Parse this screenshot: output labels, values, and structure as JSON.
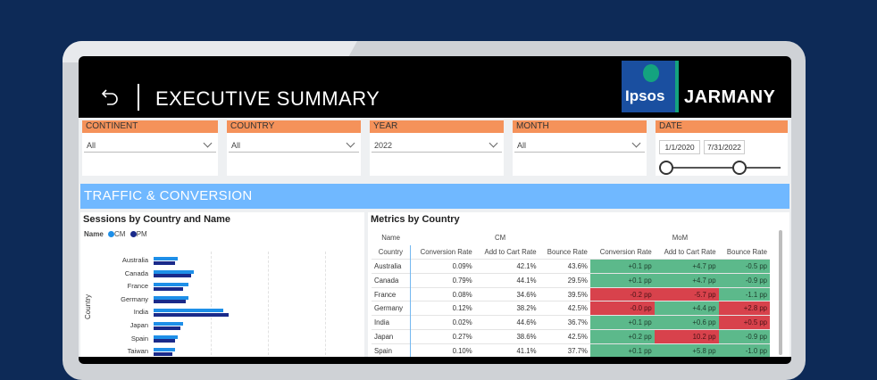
{
  "header": {
    "title": "EXECUTIVE SUMMARY",
    "logo_text": "Ipsos",
    "brand": "JARMANY"
  },
  "slicers": [
    {
      "label": "CONTINENT",
      "value": "All"
    },
    {
      "label": "COUNTRY",
      "value": "All"
    },
    {
      "label": "YEAR",
      "value": "2022"
    },
    {
      "label": "MONTH",
      "value": "All"
    }
  ],
  "date_slicer": {
    "label": "DATE",
    "start": "1/1/2020",
    "end": "7/31/2022"
  },
  "section_title": "TRAFFIC & CONVERSION",
  "colors": {
    "cm": "#1e8fe8",
    "pm": "#1a2a8a",
    "positive": "#5cb98b",
    "negative": "#d8424c",
    "accent_bar": "#70b8ff",
    "slicer_header": "#f5925a"
  },
  "sessions_chart": {
    "title": "Sessions by Country and Name",
    "legend_title": "Name",
    "ylabel": "Country",
    "chart_data": {
      "type": "bar",
      "orientation": "horizontal",
      "categories": [
        "Australia",
        "Canada",
        "France",
        "Germany",
        "India",
        "Japan",
        "Spain",
        "Taiwan"
      ],
      "series": [
        {
          "name": "CM",
          "values": [
            0.9,
            1.5,
            1.3,
            1.3,
            2.6,
            1.1,
            0.9,
            0.8
          ]
        },
        {
          "name": "PM",
          "values": [
            0.8,
            1.4,
            1.1,
            1.2,
            2.8,
            1.0,
            0.8,
            0.7
          ]
        }
      ]
    }
  },
  "metrics": {
    "title": "Metrics by Country",
    "name_label": "Name",
    "group_cm": "CM",
    "group_mom": "MoM",
    "columns": [
      "Country",
      "Conversion Rate",
      "Add to Cart Rate",
      "Bounce Rate",
      "Conversion Rate",
      "Add to Cart Rate",
      "Bounce Rate"
    ],
    "rows": [
      {
        "country": "Australia",
        "cm": [
          "0.09%",
          "42.1%",
          "43.6%"
        ],
        "mom": [
          "+0.1 pp",
          "+4.7 pp",
          "-0.5 pp"
        ],
        "mom_status": [
          "pos",
          "pos",
          "pos"
        ]
      },
      {
        "country": "Canada",
        "cm": [
          "0.79%",
          "44.1%",
          "29.5%"
        ],
        "mom": [
          "+0.1 pp",
          "+4.7 pp",
          "-0.9 pp"
        ],
        "mom_status": [
          "pos",
          "pos",
          "pos"
        ]
      },
      {
        "country": "France",
        "cm": [
          "0.08%",
          "34.6%",
          "39.5%"
        ],
        "mom": [
          "-0.2 pp",
          "-5.7 pp",
          "-1.1 pp"
        ],
        "mom_status": [
          "neg",
          "neg",
          "pos"
        ]
      },
      {
        "country": "Germany",
        "cm": [
          "0.12%",
          "38.2%",
          "42.5%"
        ],
        "mom": [
          "-0.0 pp",
          "+4.4 pp",
          "+2.8 pp"
        ],
        "mom_status": [
          "neg",
          "pos",
          "neg"
        ]
      },
      {
        "country": "India",
        "cm": [
          "0.02%",
          "44.6%",
          "36.7%"
        ],
        "mom": [
          "+0.1 pp",
          "+0.6 pp",
          "+0.5 pp"
        ],
        "mom_status": [
          "pos",
          "pos",
          "neg"
        ]
      },
      {
        "country": "Japan",
        "cm": [
          "0.27%",
          "38.6%",
          "42.5%"
        ],
        "mom": [
          "+0.2 pp",
          "10.2 pp",
          "-0.9 pp"
        ],
        "mom_status": [
          "pos",
          "neg",
          "pos"
        ]
      },
      {
        "country": "Spain",
        "cm": [
          "0.10%",
          "41.1%",
          "37.7%"
        ],
        "mom": [
          "+0.1 pp",
          "+5.8 pp",
          "-1.0 pp"
        ],
        "mom_status": [
          "pos",
          "pos",
          "pos"
        ]
      }
    ]
  }
}
